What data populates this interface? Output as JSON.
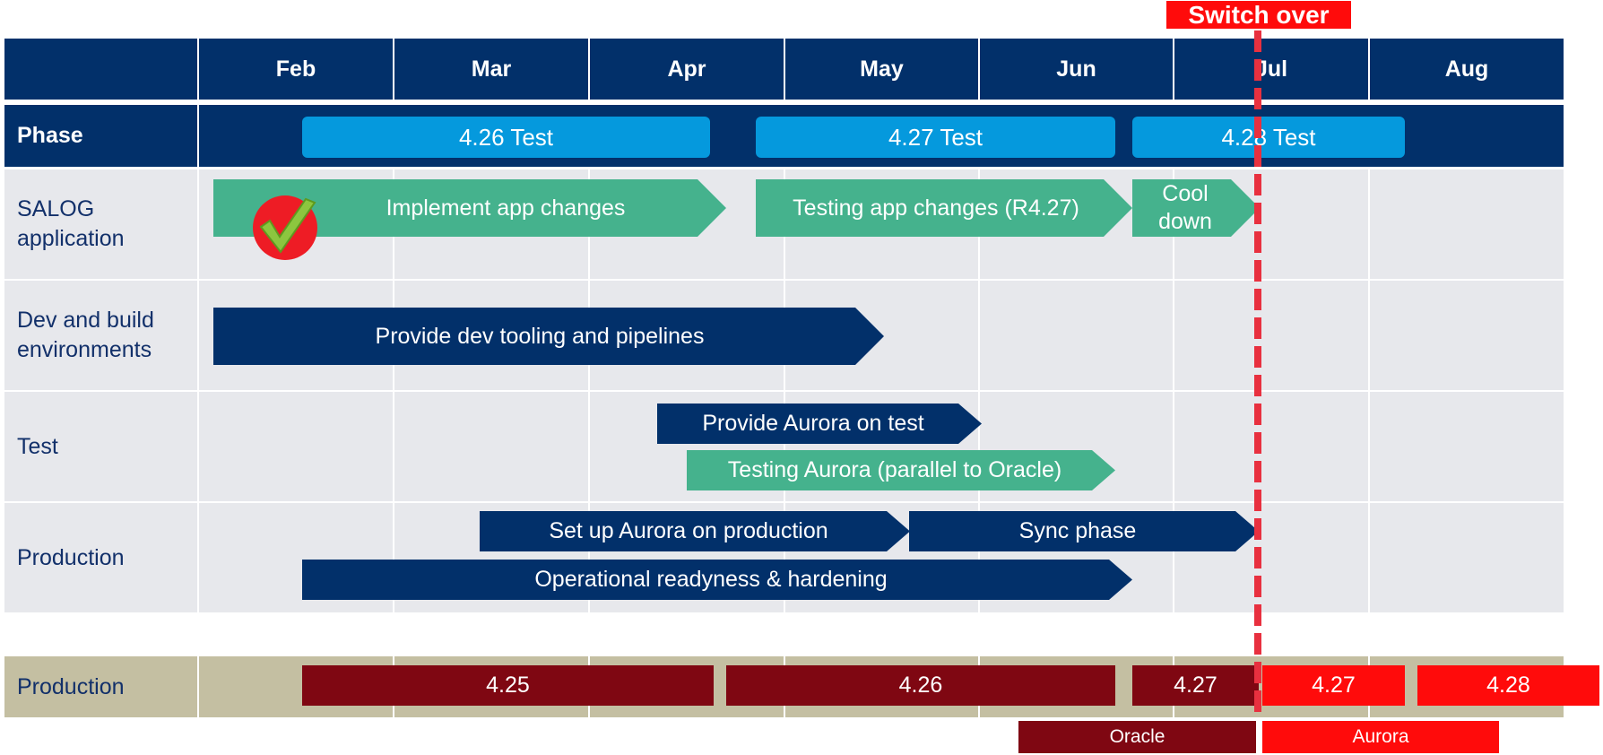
{
  "header": {
    "months": [
      "Feb",
      "Mar",
      "Apr",
      "May",
      "Jun",
      "Jul",
      "Aug"
    ]
  },
  "switch_over": {
    "label": "Switch over"
  },
  "phase_row": {
    "label": "Phase",
    "items": [
      "4.26 Test",
      "4.27 Test",
      "4.28 Test"
    ]
  },
  "lanes": {
    "salog": {
      "label_line1": "SALOG",
      "label_line2": "application",
      "tasks": {
        "implement": "Implement app changes",
        "testing": "Testing app changes (R4.27)",
        "cool_line1": "Cool",
        "cool_line2": "down"
      },
      "done_icon": "check-icon"
    },
    "dev": {
      "label_line1": "Dev and build",
      "label_line2": "environments",
      "tasks": {
        "tooling": "Provide dev tooling and pipelines"
      }
    },
    "test": {
      "label": "Test",
      "tasks": {
        "provide_aurora": "Provide Aurora on test",
        "testing_aurora": "Testing Aurora (parallel to Oracle)"
      }
    },
    "production": {
      "label": "Production",
      "tasks": {
        "setup": "Set up Aurora on production",
        "sync": "Sync phase",
        "readiness": "Operational readyness & hardening"
      }
    }
  },
  "production_releases": {
    "label": "Production",
    "releases": [
      "4.25",
      "4.26",
      "4.27",
      "4.27",
      "4.28"
    ],
    "legend": {
      "oracle": "Oracle",
      "aurora": "Aurora"
    }
  },
  "colors": {
    "navy": "#02306a",
    "phase_blue": "#0599dd",
    "task_green": "#45b28d",
    "lane_gray": "#e7e8ec",
    "oracle_red": "#7f0712",
    "aurora_red": "#ff0b0b",
    "switch_red": "#e8303f",
    "prod_tan": "#c4bfa2"
  }
}
